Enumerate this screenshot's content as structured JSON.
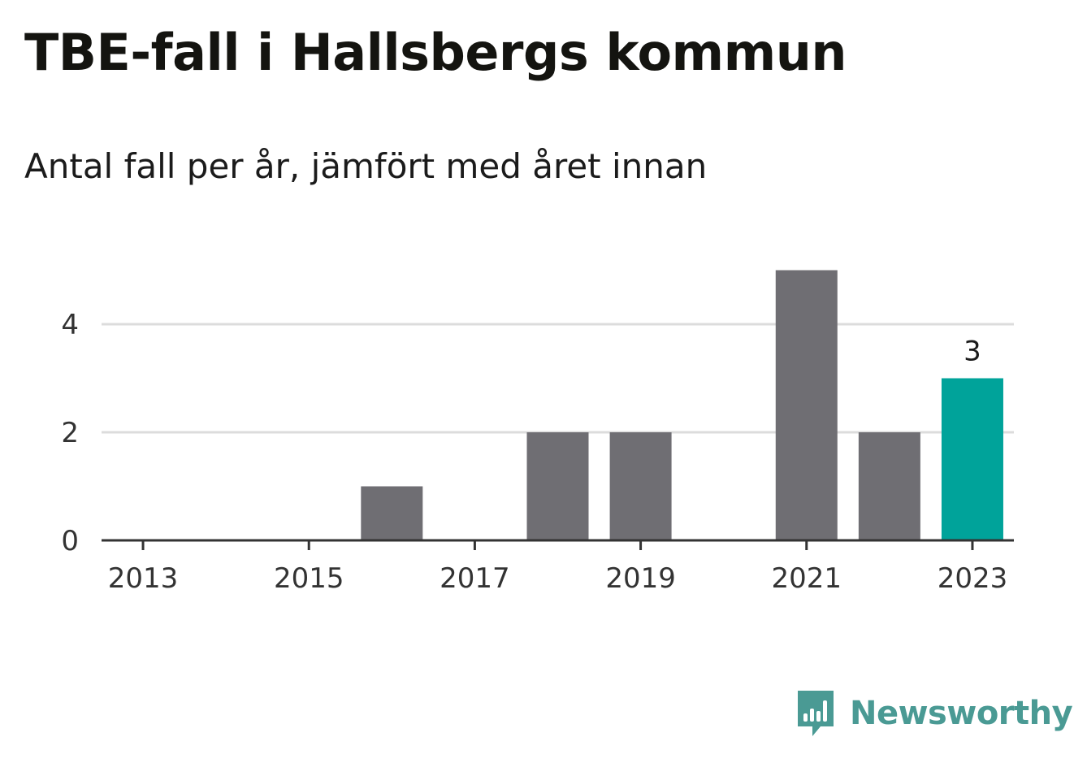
{
  "title": "TBE-fall i Hallsbergs kommun",
  "subtitle": "Antal fall per år, jämfört med året innan",
  "brand": {
    "name": "Newsworthy",
    "icon": "bar-chart-speech-bubble-icon",
    "color": "#4a9a94"
  },
  "colors": {
    "bar": "#6f6e73",
    "highlight": "#00a39a",
    "grid": "#dcdcdc",
    "axis": "#333333"
  },
  "chart_data": {
    "type": "bar",
    "categories": [
      "2013",
      "2014",
      "2015",
      "2016",
      "2017",
      "2018",
      "2019",
      "2020",
      "2021",
      "2022",
      "2023"
    ],
    "values": [
      0,
      0,
      0,
      1,
      0,
      2,
      2,
      0,
      5,
      2,
      3
    ],
    "highlight_index": 10,
    "data_labels": [
      {
        "index": 10,
        "text": "3"
      }
    ],
    "x_tick_labels": [
      "2013",
      "2015",
      "2017",
      "2019",
      "2021",
      "2023"
    ],
    "y_ticks": [
      0,
      2,
      4
    ],
    "ylim": [
      0,
      5
    ],
    "grid": "horizontal",
    "legend": "none",
    "xlabel": "",
    "ylabel": ""
  }
}
